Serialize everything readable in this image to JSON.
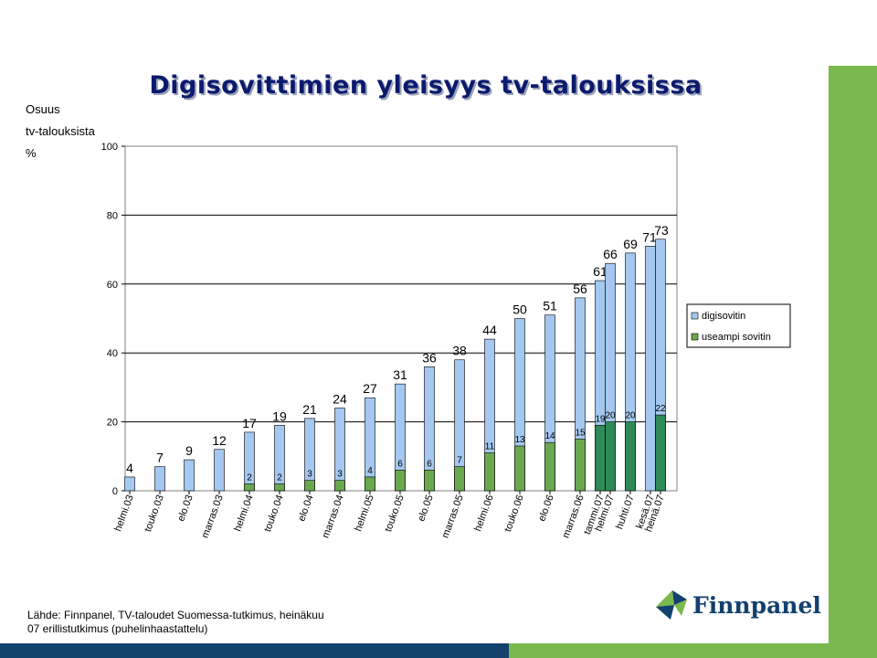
{
  "page": {
    "title": "Digisovittimien yleisyys tv-talouksissa",
    "source_line1": "Lähde: Finnpanel, TV-taloudet Suomessa-tutkimus, heinäkuu",
    "source_line2": "07 erillistutkimus (puhelinhaastattelu)",
    "logo_text": "Finnpanel",
    "colors": {
      "navy": "#13416e",
      "green": "#7ab94e",
      "title": "#0b1a6e"
    }
  },
  "chart_data": {
    "type": "bar",
    "ylabel_lines": [
      "Osuus",
      "tv-talouksista",
      "%"
    ],
    "ylim": [
      0,
      100
    ],
    "yticks": [
      0,
      20,
      40,
      60,
      80,
      100
    ],
    "grid": true,
    "legend_position": "right",
    "categories": [
      "helmi.03",
      "touko.03",
      "elo.03",
      "marras.03",
      "helmi.04",
      "touko.04",
      "elo.04",
      "marras.04",
      "helmi.05",
      "touko.05",
      "elo.05",
      "marras.05",
      "helmi.06",
      "touko.06",
      "elo.06",
      "marras.06",
      "tammi.07",
      "helmi.07",
      "huhti.07",
      "kesä.07",
      "heinä.07"
    ],
    "series": [
      {
        "name": "digisovitin",
        "color": "#a4c8ef",
        "values": [
          4,
          7,
          9,
          12,
          17,
          19,
          21,
          24,
          27,
          31,
          36,
          38,
          44,
          50,
          51,
          56,
          61,
          66,
          69,
          71,
          73
        ]
      },
      {
        "name": "useampi sovitin",
        "color": "#6aa84f",
        "values": [
          null,
          null,
          null,
          null,
          2,
          2,
          3,
          3,
          4,
          6,
          6,
          7,
          11,
          13,
          14,
          15,
          19,
          20,
          20,
          null,
          22
        ]
      }
    ],
    "highlight_color": "#2e8b57"
  }
}
